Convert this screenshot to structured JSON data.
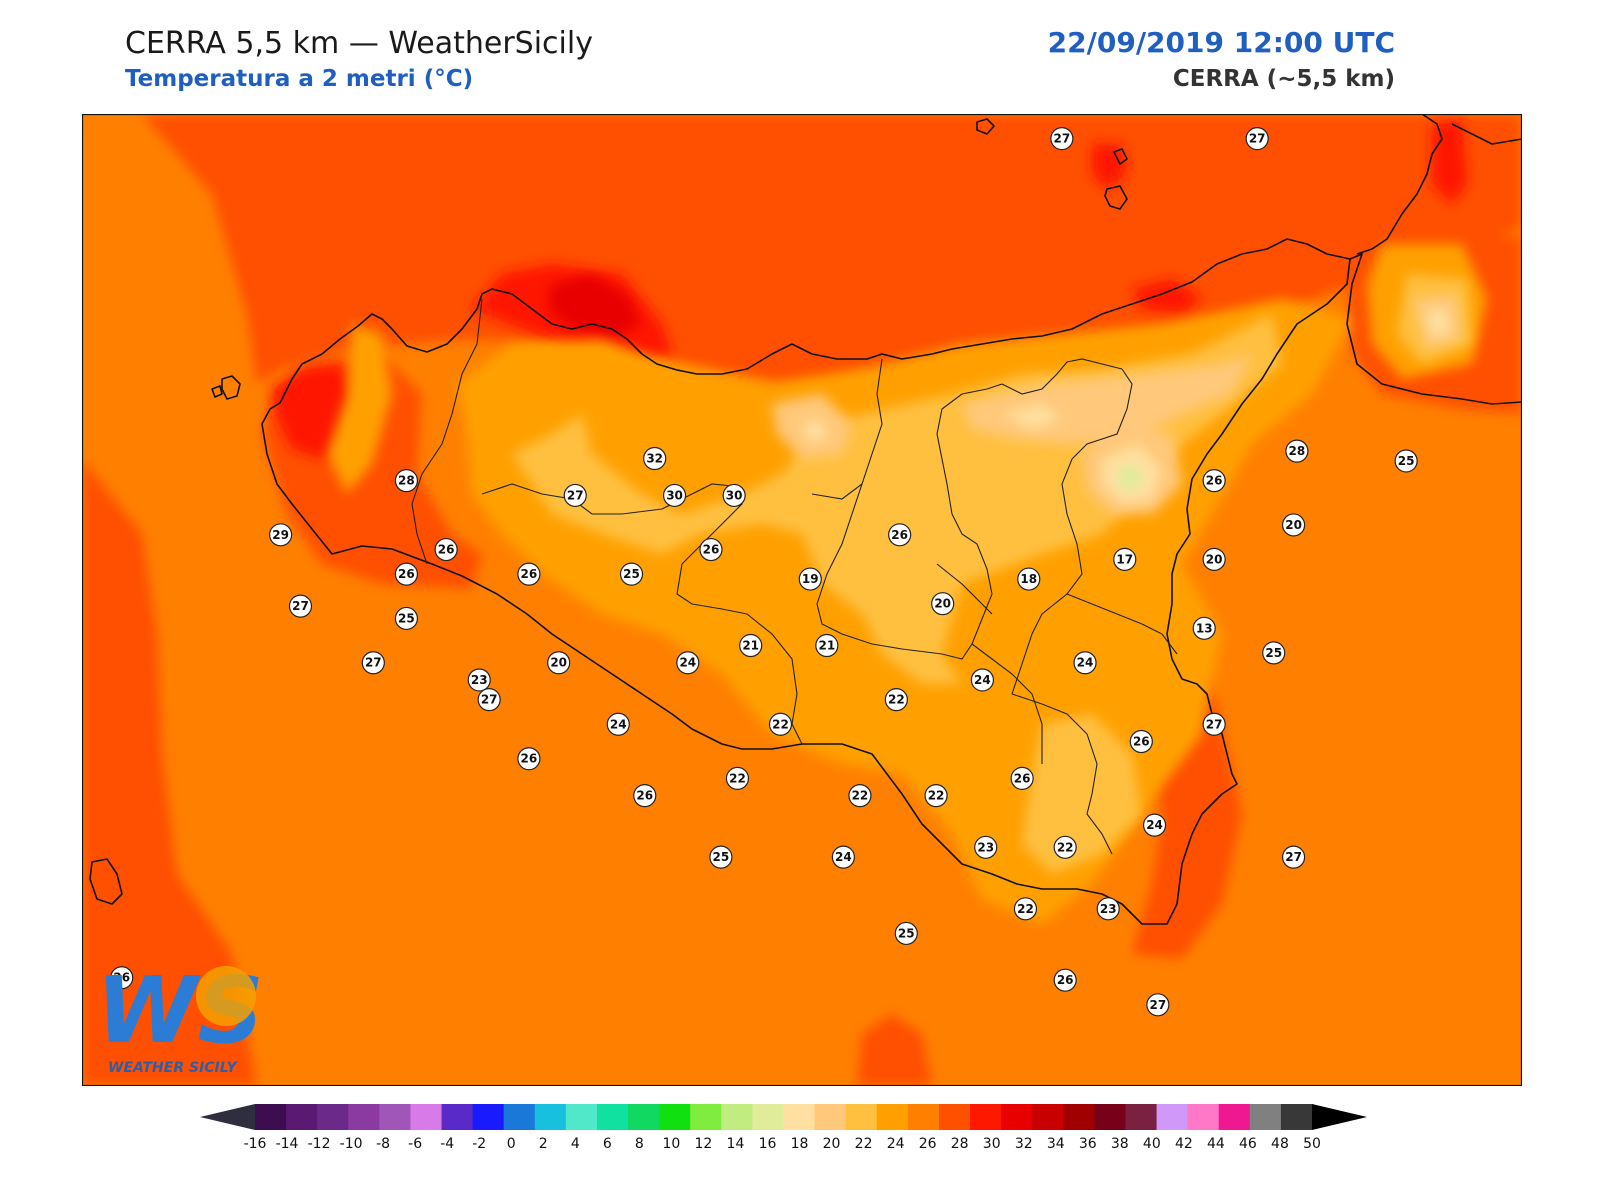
{
  "header": {
    "title": "CERRA 5,5 km — WeatherSicily",
    "subtitle": "Temperatura a 2 metri (°C)",
    "datetime": "22/09/2019 12:00 UTC",
    "model": "CERRA (~5,5 km)"
  },
  "logo": {
    "initials": "WS",
    "text": "WEATHER SICILY"
  },
  "colorbar": {
    "labels": [
      "-16",
      "-14",
      "-12",
      "-10",
      "-8",
      "-6",
      "-4",
      "-2",
      "0",
      "2",
      "4",
      "6",
      "8",
      "10",
      "12",
      "14",
      "16",
      "18",
      "20",
      "22",
      "24",
      "26",
      "28",
      "30",
      "32",
      "34",
      "36",
      "38",
      "40",
      "42",
      "44",
      "46",
      "48",
      "50"
    ],
    "colors": [
      "#3d0d4f",
      "#5a1a73",
      "#6b2a8a",
      "#8a3aa0",
      "#a055b8",
      "#d87ae8",
      "#5a2ac8",
      "#1a1aff",
      "#1a78d8",
      "#18c0e0",
      "#50e8c8",
      "#10e0a0",
      "#10d860",
      "#10e010",
      "#80ec40",
      "#c0ec80",
      "#e0ec9a",
      "#ffe0a0",
      "#ffc87a",
      "#ffc040",
      "#ffa000",
      "#ff8000",
      "#ff5000",
      "#ff1800",
      "#e80000",
      "#c80000",
      "#a00000",
      "#780018",
      "#7a2040",
      "#d098f8",
      "#ff78c8",
      "#f01890",
      "#808080",
      "#383838"
    ],
    "low_color": "#2e2e3e",
    "high_color": "#000000"
  },
  "map": {
    "background_color": "#ff8000",
    "stations": [
      {
        "v": "27",
        "lon": 14.96,
        "lat": 39.85
      },
      {
        "v": "27",
        "lon": 15.55,
        "lat": 39.85
      },
      {
        "v": "32",
        "lon": 13.73,
        "lat": 38.55
      },
      {
        "v": "30",
        "lon": 13.79,
        "lat": 38.4
      },
      {
        "v": "30",
        "lon": 13.97,
        "lat": 38.4
      },
      {
        "v": "28",
        "lon": 12.98,
        "lat": 38.46
      },
      {
        "v": "27",
        "lon": 13.49,
        "lat": 38.4
      },
      {
        "v": "29",
        "lon": 12.6,
        "lat": 38.24
      },
      {
        "v": "26",
        "lon": 13.1,
        "lat": 38.18
      },
      {
        "v": "26",
        "lon": 12.98,
        "lat": 38.08
      },
      {
        "v": "26",
        "lon": 13.35,
        "lat": 38.08
      },
      {
        "v": "25",
        "lon": 13.66,
        "lat": 38.08
      },
      {
        "v": "26",
        "lon": 13.9,
        "lat": 38.18
      },
      {
        "v": "26",
        "lon": 14.47,
        "lat": 38.24
      },
      {
        "v": "19",
        "lon": 14.2,
        "lat": 38.06
      },
      {
        "v": "27",
        "lon": 12.66,
        "lat": 37.95
      },
      {
        "v": "25",
        "lon": 12.98,
        "lat": 37.9
      },
      {
        "v": "20",
        "lon": 14.6,
        "lat": 37.96
      },
      {
        "v": "18",
        "lon": 14.86,
        "lat": 38.06
      },
      {
        "v": "17",
        "lon": 15.15,
        "lat": 38.14
      },
      {
        "v": "20",
        "lon": 15.42,
        "lat": 38.14
      },
      {
        "v": "20",
        "lon": 15.66,
        "lat": 38.28
      },
      {
        "v": "13",
        "lon": 15.39,
        "lat": 37.86
      },
      {
        "v": "25",
        "lon": 15.6,
        "lat": 37.76
      },
      {
        "v": "21",
        "lon": 14.02,
        "lat": 37.79
      },
      {
        "v": "21",
        "lon": 14.25,
        "lat": 37.79
      },
      {
        "v": "27",
        "lon": 12.88,
        "lat": 37.72
      },
      {
        "v": "23",
        "lon": 13.2,
        "lat": 37.65
      },
      {
        "v": "20",
        "lon": 13.44,
        "lat": 37.72
      },
      {
        "v": "24",
        "lon": 13.83,
        "lat": 37.72
      },
      {
        "v": "24",
        "lon": 14.72,
        "lat": 37.65
      },
      {
        "v": "24",
        "lon": 15.03,
        "lat": 37.72
      },
      {
        "v": "22",
        "lon": 14.46,
        "lat": 37.57
      },
      {
        "v": "27",
        "lon": 13.23,
        "lat": 37.57
      },
      {
        "v": "24",
        "lon": 13.62,
        "lat": 37.47
      },
      {
        "v": "22",
        "lon": 14.11,
        "lat": 37.47
      },
      {
        "v": "27",
        "lon": 15.42,
        "lat": 37.47
      },
      {
        "v": "26",
        "lon": 15.2,
        "lat": 37.4
      },
      {
        "v": "26",
        "lon": 13.35,
        "lat": 37.33
      },
      {
        "v": "22",
        "lon": 13.98,
        "lat": 37.25
      },
      {
        "v": "26",
        "lon": 14.84,
        "lat": 37.25
      },
      {
        "v": "26",
        "lon": 13.7,
        "lat": 37.18
      },
      {
        "v": "22",
        "lon": 14.35,
        "lat": 37.18
      },
      {
        "v": "22",
        "lon": 14.58,
        "lat": 37.18
      },
      {
        "v": "24",
        "lon": 15.24,
        "lat": 37.06
      },
      {
        "v": "23",
        "lon": 14.73,
        "lat": 36.97
      },
      {
        "v": "22",
        "lon": 14.97,
        "lat": 36.97
      },
      {
        "v": "27",
        "lon": 15.66,
        "lat": 36.93
      },
      {
        "v": "25",
        "lon": 13.93,
        "lat": 36.93
      },
      {
        "v": "24",
        "lon": 14.3,
        "lat": 36.93
      },
      {
        "v": "22",
        "lon": 14.85,
        "lat": 36.72
      },
      {
        "v": "23",
        "lon": 15.1,
        "lat": 36.72
      },
      {
        "v": "25",
        "lon": 14.49,
        "lat": 36.62
      },
      {
        "v": "26",
        "lon": 14.97,
        "lat": 36.43
      },
      {
        "v": "27",
        "lon": 15.25,
        "lat": 36.33
      },
      {
        "v": "26",
        "lon": 12.12,
        "lat": 36.44
      },
      {
        "v": "28",
        "lon": 15.67,
        "lat": 38.58
      },
      {
        "v": "26",
        "lon": 15.42,
        "lat": 38.46
      },
      {
        "v": "25",
        "lon": 16.0,
        "lat": 38.54
      }
    ]
  }
}
